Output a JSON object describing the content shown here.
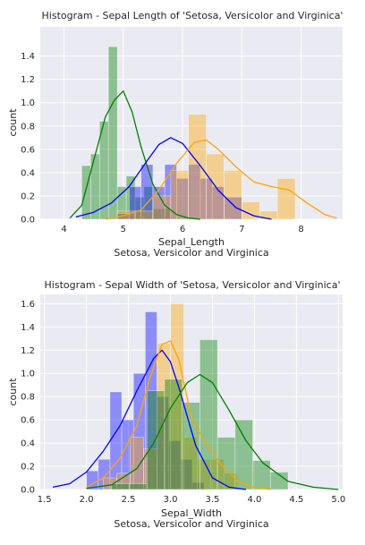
{
  "chart_data": [
    {
      "type": "histogram",
      "title": "Histogram - Sepal Length of 'Setosa, Versicolor and Virginica'",
      "xlabel": "Sepal_Length",
      "xlabel2": "Setosa, Versicolor and Virginica",
      "ylabel": "count",
      "xlim": [
        3.6,
        8.7
      ],
      "ylim": [
        0,
        1.65
      ],
      "xticks": [
        "4",
        "5",
        "6",
        "7",
        "8"
      ],
      "xtick_values": [
        4,
        5,
        6,
        7,
        8
      ],
      "yticks": [
        "0.0",
        "0.2",
        "0.4",
        "0.6",
        "0.8",
        "1.0",
        "1.2",
        "1.4"
      ],
      "ytick_values": [
        0,
        0.2,
        0.4,
        0.6,
        0.8,
        1.0,
        1.2,
        1.4
      ],
      "grid": true,
      "series": [
        {
          "color": "#008000",
          "bin_edges": [
            4.3,
            4.45,
            4.6,
            4.75,
            4.9,
            5.05,
            5.2,
            5.35,
            5.5,
            5.65,
            5.8
          ],
          "values": [
            0.46,
            0.56,
            0.84,
            1.48,
            0.28,
            0.37,
            0.19,
            0.28,
            0.09,
            0.09
          ],
          "kde_x": [
            4.1,
            4.3,
            4.5,
            4.7,
            4.85,
            5.0,
            5.15,
            5.3,
            5.5,
            5.7,
            5.9,
            6.1,
            6.3
          ],
          "kde_y": [
            0.01,
            0.12,
            0.5,
            0.88,
            1.02,
            1.1,
            0.92,
            0.62,
            0.3,
            0.12,
            0.04,
            0.01,
            0.0
          ]
        },
        {
          "color": "#0000ff",
          "bin_edges": [
            4.9,
            5.1,
            5.3,
            5.5,
            5.7,
            5.9,
            6.1,
            6.3,
            6.5,
            6.7,
            7.0
          ],
          "values": [
            0.05,
            0.28,
            0.47,
            0.28,
            0.47,
            0.35,
            0.47,
            0.35,
            0.28,
            0.19
          ],
          "kde_x": [
            4.2,
            4.5,
            4.8,
            5.1,
            5.4,
            5.6,
            5.8,
            6.0,
            6.3,
            6.6,
            6.9,
            7.2,
            7.5
          ],
          "kde_y": [
            0.02,
            0.06,
            0.14,
            0.28,
            0.5,
            0.64,
            0.7,
            0.65,
            0.46,
            0.25,
            0.1,
            0.03,
            0.0
          ]
        },
        {
          "color": "#ffa500",
          "bin_edges": [
            4.9,
            5.2,
            5.5,
            5.8,
            6.1,
            6.4,
            6.7,
            7.0,
            7.3,
            7.6,
            7.9
          ],
          "values": [
            0.07,
            0.07,
            0.2,
            0.42,
            0.9,
            0.56,
            0.42,
            0.15,
            0.07,
            0.35
          ],
          "kde_x": [
            4.7,
            5.0,
            5.3,
            5.6,
            5.9,
            6.2,
            6.4,
            6.6,
            6.9,
            7.2,
            7.5,
            7.8,
            8.1,
            8.4,
            8.6
          ],
          "kde_y": [
            0.0,
            0.03,
            0.08,
            0.25,
            0.48,
            0.66,
            0.68,
            0.6,
            0.45,
            0.32,
            0.28,
            0.25,
            0.14,
            0.04,
            0.01
          ]
        }
      ]
    },
    {
      "type": "histogram",
      "title": "Histogram - Sepal Width of 'Setosa, Versicolor and Virginica'",
      "xlabel": "Sepal_Width",
      "xlabel2": "Setosa, Versicolor and Virginica",
      "ylabel": "count",
      "xlim": [
        1.45,
        5.05
      ],
      "ylim": [
        0,
        1.68
      ],
      "xticks": [
        "1.5",
        "2.0",
        "2.5",
        "3.0",
        "3.5",
        "4.0",
        "4.5",
        "5.0"
      ],
      "xtick_values": [
        1.5,
        2.0,
        2.5,
        3.0,
        3.5,
        4.0,
        4.5,
        5.0
      ],
      "yticks": [
        "0.0",
        "0.2",
        "0.4",
        "0.6",
        "0.8",
        "1.0",
        "1.2",
        "1.4",
        "1.6"
      ],
      "ytick_values": [
        0,
        0.2,
        0.4,
        0.6,
        0.8,
        1.0,
        1.2,
        1.4,
        1.6
      ],
      "grid": true,
      "series": [
        {
          "color": "#0000ff",
          "bin_edges": [
            2.0,
            2.14,
            2.28,
            2.42,
            2.56,
            2.7,
            2.84,
            2.98,
            3.12,
            3.26,
            3.4
          ],
          "values": [
            0.16,
            0.26,
            0.84,
            0.6,
            1.0,
            1.53,
            0.8,
            0.42,
            0.26,
            0.06
          ],
          "kde_x": [
            1.6,
            1.8,
            2.0,
            2.2,
            2.4,
            2.6,
            2.8,
            2.9,
            3.0,
            3.1,
            3.3,
            3.5,
            3.7,
            3.9
          ],
          "kde_y": [
            0.02,
            0.05,
            0.15,
            0.33,
            0.55,
            0.85,
            1.13,
            1.2,
            1.1,
            0.88,
            0.38,
            0.1,
            0.02,
            0.0
          ]
        },
        {
          "color": "#ffa500",
          "bin_edges": [
            2.2,
            2.36,
            2.52,
            2.68,
            2.84,
            3.0,
            3.16,
            3.32,
            3.48,
            3.64,
            3.8
          ],
          "values": [
            0.1,
            0.14,
            0.45,
            0.35,
            1.26,
            1.6,
            0.45,
            0.26,
            0.26,
            0.14
          ],
          "kde_x": [
            2.0,
            2.2,
            2.4,
            2.6,
            2.75,
            2.9,
            3.0,
            3.1,
            3.25,
            3.4,
            3.6,
            3.8,
            4.0,
            4.2
          ],
          "kde_y": [
            0.02,
            0.1,
            0.27,
            0.55,
            0.95,
            1.25,
            1.28,
            1.12,
            0.62,
            0.42,
            0.22,
            0.07,
            0.02,
            0.0
          ]
        },
        {
          "color": "#008000",
          "bin_edges": [
            2.3,
            2.51,
            2.72,
            2.93,
            3.14,
            3.35,
            3.56,
            3.77,
            3.98,
            4.19,
            4.4
          ],
          "values": [
            0.05,
            0.05,
            0.85,
            0.95,
            0.75,
            1.29,
            0.45,
            0.6,
            0.25,
            0.15
          ],
          "kde_x": [
            2.0,
            2.3,
            2.6,
            2.8,
            3.0,
            3.2,
            3.35,
            3.5,
            3.7,
            3.9,
            4.1,
            4.4,
            4.7,
            5.0
          ],
          "kde_y": [
            0.01,
            0.04,
            0.18,
            0.4,
            0.7,
            0.92,
            0.99,
            0.92,
            0.68,
            0.42,
            0.23,
            0.07,
            0.02,
            0.0
          ]
        }
      ]
    }
  ]
}
